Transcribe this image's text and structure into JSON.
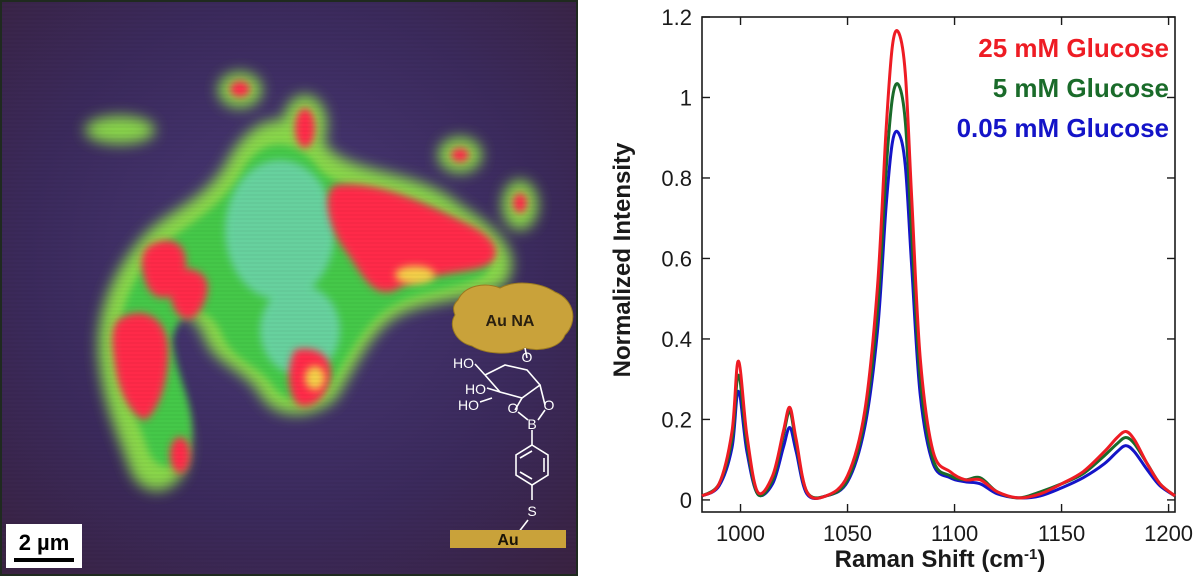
{
  "map_panel": {
    "scale_bar_label": "2 µm",
    "nanoaggregate_label": "Au NA",
    "substrate_label": "Au",
    "molecule_atom_labels": {
      "oh_top": "HO",
      "oh_mid": "HO",
      "oh_low": "HO",
      "ring_oxygen": "O",
      "ester_oxygen_left": "O",
      "ester_oxygen_right": "O",
      "boron": "B",
      "sulfur": "S"
    },
    "colors": {
      "background": "#3b2a5c",
      "hot": "#ff2a4a",
      "mid": "#45c84a",
      "edge": "#a6f04c",
      "gold": "#c9a23a",
      "frame": "#1f2a1f"
    }
  },
  "chart_data": {
    "type": "line",
    "xlabel": "Raman Shift (cm",
    "xlabel_superscript": "-1",
    "xlabel_suffix": ")",
    "ylabel": "Normalized Intensity",
    "xlim": [
      982,
      1203
    ],
    "ylim": [
      -0.03,
      1.2
    ],
    "xticks": [
      1000,
      1050,
      1100,
      1150,
      1200
    ],
    "yticks": [
      0,
      0.2,
      0.4,
      0.6,
      0.8,
      1,
      1.2
    ],
    "xtick_labels": [
      "1000",
      "1050",
      "1100",
      "1150",
      "1200"
    ],
    "ytick_labels": [
      "0",
      "0.2",
      "0.4",
      "0.6",
      "0.8",
      "1",
      "1.2"
    ],
    "grid": false,
    "legend_position": "top-right",
    "series": [
      {
        "name": "25 mM Glucose",
        "color": "#ee1c24",
        "x": [
          982,
          990,
          996,
          999,
          1003,
          1008,
          1015,
          1020,
          1023,
          1026,
          1031,
          1040,
          1050,
          1058,
          1064,
          1068,
          1071,
          1074,
          1077,
          1080,
          1084,
          1090,
          1098,
          1105,
          1112,
          1120,
          1130,
          1140,
          1150,
          1160,
          1170,
          1176,
          1180,
          1184,
          1190,
          1196,
          1203
        ],
        "y": [
          0.01,
          0.04,
          0.17,
          0.345,
          0.16,
          0.02,
          0.06,
          0.17,
          0.23,
          0.15,
          0.02,
          0.01,
          0.06,
          0.22,
          0.53,
          0.92,
          1.13,
          1.16,
          1.06,
          0.75,
          0.35,
          0.12,
          0.07,
          0.05,
          0.05,
          0.02,
          0.005,
          0.015,
          0.04,
          0.07,
          0.12,
          0.155,
          0.17,
          0.15,
          0.09,
          0.04,
          0.01
        ]
      },
      {
        "name": "5 mM Glucose",
        "color": "#1a6b2a",
        "x": [
          982,
          990,
          996,
          999,
          1003,
          1008,
          1015,
          1020,
          1023,
          1026,
          1031,
          1040,
          1050,
          1058,
          1064,
          1068,
          1071,
          1074,
          1077,
          1080,
          1084,
          1090,
          1098,
          1105,
          1112,
          1120,
          1130,
          1140,
          1150,
          1160,
          1170,
          1176,
          1180,
          1184,
          1190,
          1196,
          1203
        ],
        "y": [
          0.01,
          0.04,
          0.15,
          0.31,
          0.14,
          0.015,
          0.05,
          0.16,
          0.22,
          0.14,
          0.02,
          0.01,
          0.05,
          0.2,
          0.47,
          0.82,
          1.0,
          1.03,
          0.94,
          0.66,
          0.3,
          0.1,
          0.06,
          0.05,
          0.055,
          0.02,
          0.005,
          0.02,
          0.04,
          0.065,
          0.11,
          0.14,
          0.155,
          0.14,
          0.09,
          0.04,
          0.01
        ]
      },
      {
        "name": "0.05 mM Glucose",
        "color": "#1414c8",
        "x": [
          982,
          990,
          996,
          999,
          1003,
          1008,
          1015,
          1020,
          1023,
          1026,
          1031,
          1040,
          1050,
          1058,
          1064,
          1068,
          1071,
          1074,
          1077,
          1080,
          1084,
          1090,
          1098,
          1105,
          1112,
          1120,
          1130,
          1140,
          1150,
          1160,
          1170,
          1176,
          1180,
          1184,
          1190,
          1196,
          1203
        ],
        "y": [
          0.01,
          0.035,
          0.13,
          0.27,
          0.12,
          0.015,
          0.04,
          0.13,
          0.18,
          0.12,
          0.015,
          0.01,
          0.045,
          0.18,
          0.42,
          0.73,
          0.89,
          0.91,
          0.83,
          0.58,
          0.26,
          0.09,
          0.055,
          0.045,
          0.04,
          0.015,
          0.005,
          0.01,
          0.03,
          0.055,
          0.09,
          0.12,
          0.135,
          0.12,
          0.075,
          0.035,
          0.01
        ]
      }
    ]
  }
}
